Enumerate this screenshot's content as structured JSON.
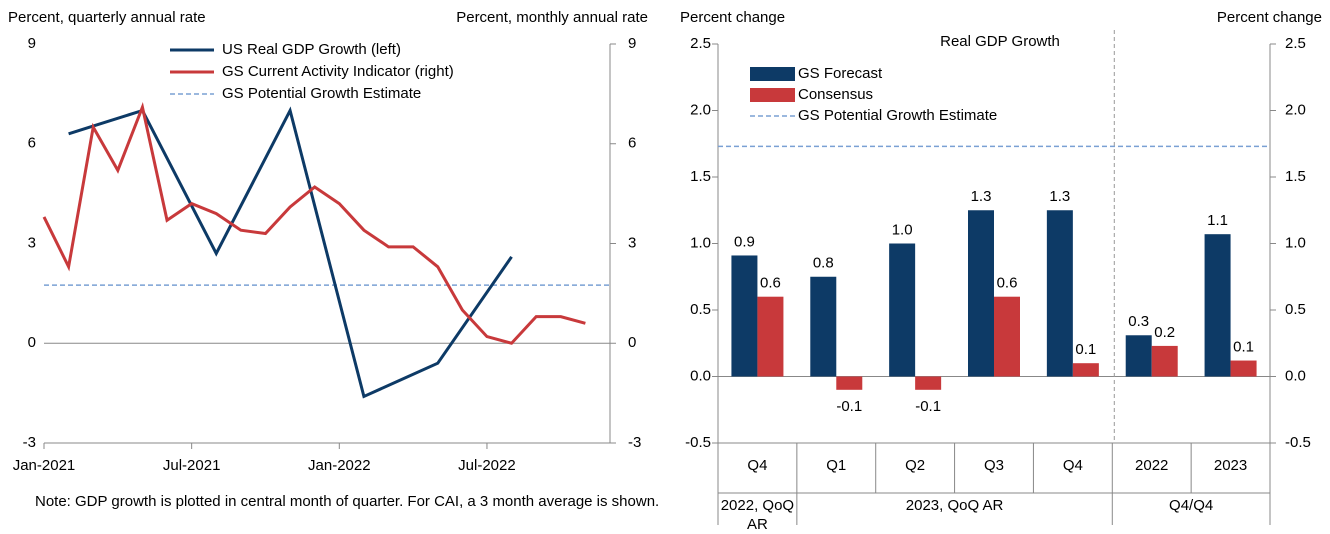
{
  "chart_data": [
    {
      "type": "line",
      "y_label": "Percent, quarterly annual rate",
      "y2_label": "Percent, monthly annual rate",
      "xlim": [
        "2021-01",
        "2022-12"
      ],
      "xticks": [
        {
          "value": "2021-01",
          "label": "Jan-2021"
        },
        {
          "value": "2021-07",
          "label": "Jul-2021"
        },
        {
          "value": "2022-01",
          "label": "Jan-2022"
        },
        {
          "value": "2022-07",
          "label": "Jul-2022"
        }
      ],
      "ylim": [
        -3,
        9
      ],
      "yticks": [
        -3,
        0,
        3,
        6,
        9
      ],
      "y2lim": [
        -3,
        9
      ],
      "y2ticks": [
        -3,
        0,
        3,
        6,
        9
      ],
      "series": [
        {
          "name": "US Real GDP Growth (left)",
          "color": "#0d3a66",
          "x": [
            "2021-02",
            "2021-05",
            "2021-08",
            "2021-11",
            "2022-02",
            "2022-05",
            "2022-08"
          ],
          "values": [
            6.3,
            7.0,
            2.7,
            7.0,
            -1.6,
            -0.6,
            2.6
          ]
        },
        {
          "name": "GS Current Activity Indicator (right)",
          "color": "#c8393b",
          "axis": "y2",
          "x": [
            "2021-01",
            "2021-02",
            "2021-03",
            "2021-04",
            "2021-05",
            "2021-06",
            "2021-07",
            "2021-08",
            "2021-09",
            "2021-10",
            "2021-11",
            "2021-12",
            "2022-01",
            "2022-02",
            "2022-03",
            "2022-04",
            "2022-05",
            "2022-06",
            "2022-07",
            "2022-08",
            "2022-09",
            "2022-10",
            "2022-11"
          ],
          "values": [
            3.8,
            2.3,
            6.5,
            5.2,
            7.1,
            3.7,
            4.2,
            3.9,
            3.4,
            3.3,
            4.1,
            4.7,
            4.2,
            3.4,
            2.9,
            2.9,
            2.3,
            1.0,
            0.2,
            0.0,
            0.8,
            0.8,
            0.6
          ]
        }
      ],
      "reference_line": {
        "name": "GS Potential Growth Estimate",
        "value": 1.75,
        "color": "#7aa0d4"
      },
      "note": "Note: GDP growth is plotted in central month of quarter. For CAI, a 3 month average is shown."
    },
    {
      "type": "bar",
      "title": "Real GDP Growth",
      "y_label": "Percent change",
      "y2_label": "Percent change",
      "ylim": [
        -0.5,
        2.5
      ],
      "yticks": [
        -0.5,
        {
          "value": 0,
          "label": "0.0"
        },
        0.5,
        {
          "value": 1,
          "label": "1.0"
        },
        1.5,
        {
          "value": 2,
          "label": "2.0"
        },
        2.5
      ],
      "y2lim": [
        -0.5,
        2.5
      ],
      "y2ticks": [
        -0.5,
        {
          "value": 0,
          "label": "0.0"
        },
        0.5,
        {
          "value": 1,
          "label": "1.0"
        },
        1.5,
        {
          "value": 2,
          "label": "2.0"
        },
        2.5
      ],
      "categories": [
        "Q4",
        "Q1",
        "Q2",
        "Q3",
        "Q4",
        "2022",
        "2023"
      ],
      "groups": [
        {
          "label": "2022, QoQ AR",
          "span": 1
        },
        {
          "label": "2023, QoQ AR",
          "span": 4
        },
        {
          "label": "Q4/Q4",
          "span": 2
        }
      ],
      "series": [
        {
          "name": "GS Forecast",
          "color": "#0d3a66",
          "values": [
            0.91,
            0.75,
            1.0,
            1.25,
            1.25,
            0.31,
            1.07
          ],
          "value_labels": [
            "0.9",
            "0.8",
            "1.0",
            "1.3",
            "1.3",
            "0.3",
            "1.1"
          ]
        },
        {
          "name": "Consensus",
          "color": "#c8393b",
          "values": [
            0.6,
            -0.1,
            -0.1,
            0.6,
            0.1,
            0.23,
            0.12
          ],
          "value_labels": [
            "0.6",
            "-0.1",
            "-0.1",
            "0.6",
            "0.1",
            "0.2",
            "0.1"
          ]
        }
      ],
      "reference_line": {
        "name": "GS Potential Growth Estimate",
        "value": 1.73,
        "color": "#7aa0d4"
      }
    }
  ]
}
